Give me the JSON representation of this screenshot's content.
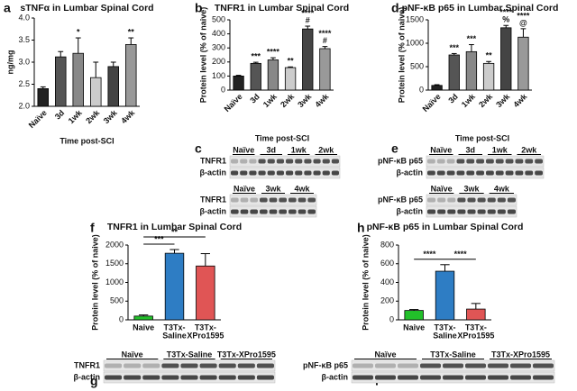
{
  "chart_data": [
    {
      "type": "bar",
      "panel": "a",
      "title": "sTNFα in Lumbar Spinal Cord",
      "y_label": "ng/mg",
      "x_label": "Time post-SCI",
      "categories": [
        "Naïve",
        "3d",
        "1wk",
        "2wk",
        "3wk",
        "4wk"
      ],
      "values": [
        2.4,
        3.12,
        3.2,
        2.65,
        2.9,
        3.4
      ],
      "errors": [
        0.04,
        0.12,
        0.35,
        0.35,
        0.1,
        0.15
      ],
      "colors": [
        "#222222",
        "#555555",
        "#888888",
        "#cccccc",
        "#444444",
        "#999999"
      ],
      "annotations": [
        [],
        [],
        [
          "*"
        ],
        [],
        [],
        [
          "**"
        ]
      ],
      "ylim": [
        2,
        4
      ],
      "yticks": [
        {
          "value": 2,
          "label": "2.0"
        },
        {
          "value": 2.5,
          "label": "2.5"
        },
        {
          "value": 3,
          "label": "3.0"
        },
        {
          "value": 3.5,
          "label": "3.5"
        },
        {
          "value": 4,
          "label": "4.0"
        }
      ]
    },
    {
      "type": "bar",
      "panel": "b",
      "title": "TNFR1 in Lumbar Spinal Cord",
      "y_label": "Protein level (% of naive)",
      "categories": [
        "Naïve",
        "3d",
        "1wk",
        "2wk",
        "3wk",
        "4wk"
      ],
      "values": [
        100,
        190,
        215,
        160,
        435,
        295
      ],
      "errors": [
        5,
        8,
        15,
        5,
        20,
        15
      ],
      "colors": [
        "#222222",
        "#555555",
        "#888888",
        "#cccccc",
        "#444444",
        "#999999"
      ],
      "annotations": [
        [],
        [
          "***"
        ],
        [
          "****"
        ],
        [
          "**"
        ],
        [
          "****",
          "#"
        ],
        [
          "****",
          "#"
        ]
      ],
      "ylim": [
        0,
        500
      ],
      "yticks": [
        0,
        100,
        200,
        300,
        400,
        500
      ]
    },
    {
      "type": "bar",
      "panel": "d",
      "title": "pNF-κB p65 in Lumbar Spinal Cord",
      "y_label": "Protein level (% of naive)",
      "categories": [
        "Naïve",
        "3d",
        "1wk",
        "2wk",
        "3wk",
        "4wk"
      ],
      "values": [
        100,
        750,
        820,
        570,
        1330,
        1130
      ],
      "errors": [
        15,
        30,
        150,
        40,
        50,
        180
      ],
      "colors": [
        "#222222",
        "#555555",
        "#888888",
        "#cccccc",
        "#444444",
        "#999999"
      ],
      "annotations": [
        [],
        [
          "***"
        ],
        [
          "***"
        ],
        [
          "**"
        ],
        [
          "****",
          "%"
        ],
        [
          "****",
          "@"
        ]
      ],
      "ylim": [
        0,
        1500
      ],
      "yticks": [
        0,
        500,
        1000,
        1500
      ]
    },
    {
      "type": "bar",
      "panel": "f",
      "title": "TNFR1 in Lumbar Spinal Cord",
      "y_label": "Protein level (% of naive)",
      "categories": [
        [
          "Naive"
        ],
        [
          "T3Tx-",
          "Saline"
        ],
        [
          "T3Tx-",
          "XPro1595"
        ]
      ],
      "values": [
        100,
        1780,
        1440
      ],
      "errors": [
        30,
        100,
        330
      ],
      "colors": [
        "#22c02a",
        "#2e7dc4",
        "#e05555"
      ],
      "comparisons": [
        {
          "pair": [
            0,
            1
          ],
          "label": "***"
        },
        {
          "pair": [
            0,
            2
          ],
          "label": "**"
        }
      ],
      "ylim": [
        0,
        2000
      ],
      "yticks": [
        0,
        500,
        1000,
        1500,
        2000
      ]
    },
    {
      "type": "bar",
      "panel": "h",
      "title": "pNF-κB p65 in Lumbar Spinal Cord",
      "y_label": "Protein level (% of naive)",
      "categories": [
        [
          "Naive"
        ],
        [
          "T3Tx-",
          "Saline"
        ],
        [
          "T3Tx-",
          "XPro1595"
        ]
      ],
      "values": [
        100,
        520,
        115
      ],
      "errors": [
        10,
        70,
        60
      ],
      "colors": [
        "#22c02a",
        "#2e7dc4",
        "#e05555"
      ],
      "comparisons": [
        {
          "pair": [
            0,
            1
          ],
          "label": "****"
        },
        {
          "pair": [
            1,
            2
          ],
          "label": "****"
        }
      ],
      "ylim": [
        0,
        800
      ],
      "yticks": [
        0,
        200,
        400,
        600,
        800
      ]
    }
  ],
  "blots": [
    {
      "panel": "c",
      "title": "Time post-SCI",
      "groups": [
        {
          "lanes": [
            "Naïve",
            "3d",
            "1wk",
            "2wk"
          ],
          "rows": [
            "TNFR1",
            "β-actin"
          ]
        },
        {
          "lanes": [
            "Naïve",
            "3wk",
            "4wk"
          ],
          "rows": [
            "TNFR1",
            "β-actin"
          ]
        }
      ]
    },
    {
      "panel": "e",
      "title": "Time post-SCI",
      "groups": [
        {
          "lanes": [
            "Naïve",
            "3d",
            "1wk",
            "2wk"
          ],
          "rows": [
            "pNF-κB p65",
            "β-actin"
          ]
        },
        {
          "lanes": [
            "Naïve",
            "3wk",
            "4wk"
          ],
          "rows": [
            "pNF-κB p65",
            "β-actin"
          ]
        }
      ]
    },
    {
      "panel": "g",
      "groups": [
        {
          "lanes": [
            "Naïve",
            "T3Tx-Saline",
            "T3Tx-XPro1595"
          ],
          "rows": [
            "TNFR1",
            "β-actin"
          ]
        }
      ]
    },
    {
      "panel": "i",
      "groups": [
        {
          "lanes": [
            "Naïve",
            "T3Tx-Saline",
            "T3Tx-XPro1595"
          ],
          "rows": [
            "pNF-κB p65",
            "β-actin"
          ]
        }
      ]
    }
  ]
}
